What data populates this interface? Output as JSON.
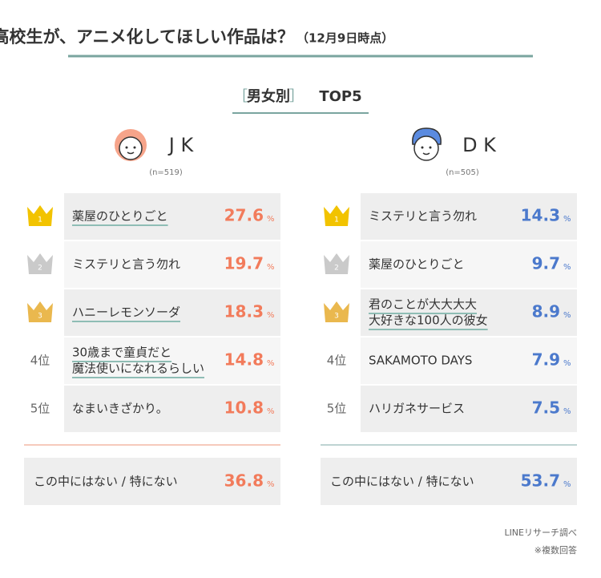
{
  "header": {
    "title": "高校生が、アニメ化してほしい作品は？",
    "title_note": "（12月9日時点）",
    "subtitle_open": "［",
    "subtitle_label": "男女別",
    "subtitle_close": "］",
    "subtitle_rank": "TOP5"
  },
  "unit": "%",
  "panels": [
    {
      "label": "J K",
      "n": "(n=519)",
      "color": "#f27b5b",
      "rule_color": "#f3b9a6",
      "rows": [
        {
          "rank": "1",
          "title": [
            "薬屋のひとりごと"
          ],
          "value": 27.6,
          "underline": true
        },
        {
          "rank": "2",
          "title": [
            "ミステリと言う勿れ"
          ],
          "value": 19.7,
          "underline": false
        },
        {
          "rank": "3",
          "title": [
            "ハニーレモンソーダ"
          ],
          "value": 18.3,
          "underline": true
        },
        {
          "rank": "4位",
          "title": [
            "30歳まで童貞だと",
            "魔法使いになれるらしい"
          ],
          "value": 14.8,
          "underline": true
        },
        {
          "rank": "5位",
          "title": [
            "なまいきざかり。"
          ],
          "value": 10.8,
          "underline": false
        }
      ],
      "other": {
        "title": "この中にはない / 特にない",
        "value": 36.8
      }
    },
    {
      "label": "D K",
      "n": "(n=505)",
      "color": "#4b79cc",
      "rule_color": "#a9c6c4",
      "rows": [
        {
          "rank": "1",
          "title": [
            "ミステリと言う勿れ"
          ],
          "value": 14.3,
          "underline": false
        },
        {
          "rank": "2",
          "title": [
            "薬屋のひとりごと"
          ],
          "value": 9.7,
          "underline": false
        },
        {
          "rank": "3",
          "title": [
            "君のことが大大大大",
            "大好きな100人の彼女"
          ],
          "value": 8.9,
          "underline": true
        },
        {
          "rank": "4位",
          "title": [
            "SAKAMOTO DAYS"
          ],
          "value": 7.9,
          "underline": false
        },
        {
          "rank": "5位",
          "title": [
            "ハリガネサービス"
          ],
          "value": 7.5,
          "underline": false
        }
      ],
      "other": {
        "title": "この中にはない / 特にない",
        "value": 53.7
      }
    }
  ],
  "footer": {
    "source": "LINEリサーチ調べ",
    "note": "※複数回答"
  }
}
